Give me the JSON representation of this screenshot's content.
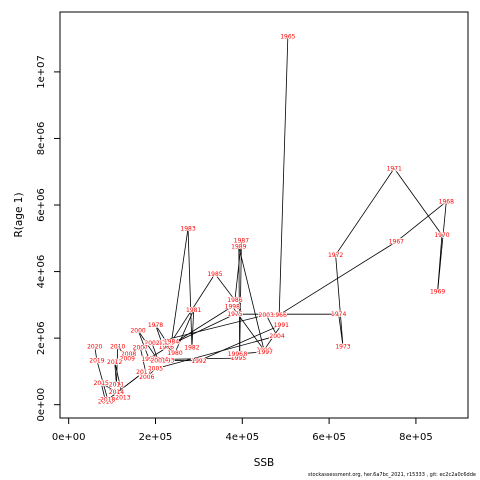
{
  "chart_data": {
    "type": "line",
    "xlabel": "SSB",
    "ylabel": "R(age 1)",
    "xlim": [
      -20000,
      920000
    ],
    "ylim": [
      -400000,
      11800000
    ],
    "x_ticks": [
      {
        "value": 0,
        "label": "0e+00"
      },
      {
        "value": 200000,
        "label": "2e+05"
      },
      {
        "value": 400000,
        "label": "4e+05"
      },
      {
        "value": 600000,
        "label": "6e+05"
      },
      {
        "value": 800000,
        "label": "8e+05"
      }
    ],
    "y_ticks": [
      {
        "value": 0,
        "label": "0e+00"
      },
      {
        "value": 2000000,
        "label": "2e+06"
      },
      {
        "value": 4000000,
        "label": "4e+06"
      },
      {
        "value": 6000000,
        "label": "6e+06"
      },
      {
        "value": 8000000,
        "label": "8e+06"
      },
      {
        "value": 10000000,
        "label": "1e+07"
      }
    ],
    "label_color": "#ff0000",
    "line_color": "#000000",
    "points": [
      {
        "year": "1965",
        "ssb": 505000,
        "r": 11070000
      },
      {
        "year": "1966",
        "ssb": 485000,
        "r": 2700000
      },
      {
        "year": "1967",
        "ssb": 755000,
        "r": 4900000
      },
      {
        "year": "1968",
        "ssb": 870000,
        "r": 6100000
      },
      {
        "year": "1969",
        "ssb": 850000,
        "r": 3400000
      },
      {
        "year": "1970",
        "ssb": 860000,
        "r": 5100000
      },
      {
        "year": "1971",
        "ssb": 750000,
        "r": 7100000
      },
      {
        "year": "1972",
        "ssb": 615000,
        "r": 4500000
      },
      {
        "year": "1973",
        "ssb": 632000,
        "r": 1750000
      },
      {
        "year": "1974",
        "ssb": 622000,
        "r": 2720000
      },
      {
        "year": "1975",
        "ssb": 383000,
        "r": 2720000
      },
      {
        "year": "1976",
        "ssb": 225000,
        "r": 1740000
      },
      {
        "year": "1977",
        "ssb": 227000,
        "r": 1850000
      },
      {
        "year": "1978",
        "ssb": 200000,
        "r": 2400000
      },
      {
        "year": "1979",
        "ssb": 215000,
        "r": 1850000
      },
      {
        "year": "1980",
        "ssb": 245000,
        "r": 1560000
      },
      {
        "year": "1981",
        "ssb": 288000,
        "r": 2850000
      },
      {
        "year": "1982",
        "ssb": 284000,
        "r": 1720000
      },
      {
        "year": "1983",
        "ssb": 275000,
        "r": 5300000
      },
      {
        "year": "1984",
        "ssb": 237000,
        "r": 1900000
      },
      {
        "year": "1985",
        "ssb": 337000,
        "r": 3930000
      },
      {
        "year": "1986",
        "ssb": 383000,
        "r": 3140000
      },
      {
        "year": "1987",
        "ssb": 398000,
        "r": 4930000
      },
      {
        "year": "1988",
        "ssb": 394000,
        "r": 1530000
      },
      {
        "year": "1989",
        "ssb": 392000,
        "r": 4750000
      },
      {
        "year": "1990",
        "ssb": 450000,
        "r": 1640000
      },
      {
        "year": "1991",
        "ssb": 490000,
        "r": 2400000
      },
      {
        "year": "1992",
        "ssb": 300000,
        "r": 1320000
      },
      {
        "year": "1993",
        "ssb": 226000,
        "r": 1330000
      },
      {
        "year": "1994",
        "ssb": 212000,
        "r": 1360000
      },
      {
        "year": "1995",
        "ssb": 391000,
        "r": 1400000
      },
      {
        "year": "1996",
        "ssb": 384000,
        "r": 1520000
      },
      {
        "year": "1997",
        "ssb": 453000,
        "r": 1590000
      },
      {
        "year": "1998",
        "ssb": 377000,
        "r": 2950000
      },
      {
        "year": "1999",
        "ssb": 185000,
        "r": 1380000
      },
      {
        "year": "2000",
        "ssb": 160000,
        "r": 2230000
      },
      {
        "year": "2001",
        "ssb": 206000,
        "r": 1330000
      },
      {
        "year": "2002",
        "ssb": 192000,
        "r": 1850000
      },
      {
        "year": "2003",
        "ssb": 455000,
        "r": 2700000
      },
      {
        "year": "2004",
        "ssb": 480000,
        "r": 2070000
      },
      {
        "year": "2005",
        "ssb": 200000,
        "r": 1080000
      },
      {
        "year": "2006",
        "ssb": 180000,
        "r": 830000
      },
      {
        "year": "2007",
        "ssb": 165000,
        "r": 1720000
      },
      {
        "year": "2008",
        "ssb": 138000,
        "r": 1520000
      },
      {
        "year": "2009",
        "ssb": 135000,
        "r": 1390000
      },
      {
        "year": "2010",
        "ssb": 113000,
        "r": 1750000
      },
      {
        "year": "2011",
        "ssb": 110000,
        "r": 600000
      },
      {
        "year": "2012",
        "ssb": 106000,
        "r": 1290000
      },
      {
        "year": "2013",
        "ssb": 125000,
        "r": 210000
      },
      {
        "year": "2014",
        "ssb": 110000,
        "r": 380000
      },
      {
        "year": "2015",
        "ssb": 75000,
        "r": 650000
      },
      {
        "year": "2016",
        "ssb": 85000,
        "r": 100000
      },
      {
        "year": "2017",
        "ssb": 173000,
        "r": 980000
      },
      {
        "year": "2018",
        "ssb": 90000,
        "r": 150000
      },
      {
        "year": "2019",
        "ssb": 65000,
        "r": 1330000
      },
      {
        "year": "2020",
        "ssb": 60000,
        "r": 1750000
      }
    ]
  },
  "footer": {
    "text": "stockassessment.org, her.6a7bc_2021, r15333 , git: ec2c2a0c6dde"
  }
}
